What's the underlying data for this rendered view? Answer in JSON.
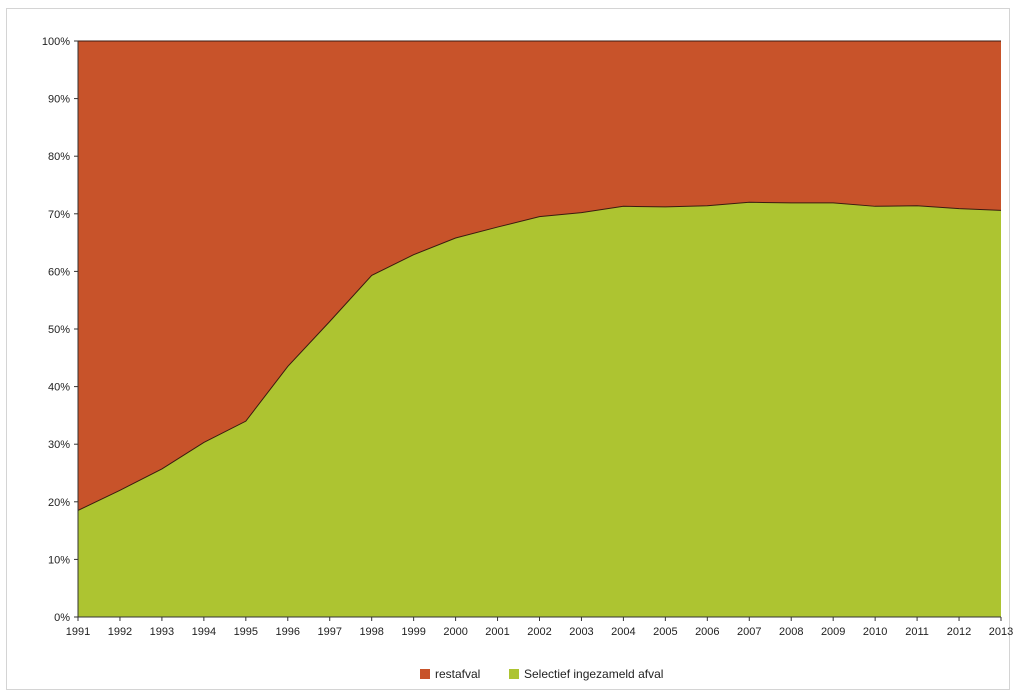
{
  "colors": {
    "restafval": "#c8532a",
    "selectief": "#adc431",
    "outline": "#3a1a10",
    "axis": "#333333"
  },
  "chart_data": {
    "type": "area",
    "stacked": true,
    "percent": true,
    "title": "",
    "xlabel": "",
    "ylabel": "",
    "ylim": [
      0,
      100
    ],
    "yticks": [
      "0%",
      "10%",
      "20%",
      "30%",
      "40%",
      "50%",
      "60%",
      "70%",
      "80%",
      "90%",
      "100%"
    ],
    "categories": [
      "1991",
      "1992",
      "1993",
      "1994",
      "1995",
      "1996",
      "1997",
      "1998",
      "1999",
      "2000",
      "2001",
      "2002",
      "2003",
      "2004",
      "2005",
      "2006",
      "2007",
      "2008",
      "2009",
      "2010",
      "2011",
      "2012",
      "2013"
    ],
    "series": [
      {
        "name": "restafval",
        "values": [
          81.5,
          78,
          74.3,
          69.7,
          66,
          56.5,
          48.7,
          40.7,
          37.1,
          34.2,
          32.3,
          30.5,
          29.8,
          28.7,
          28.8,
          28.6,
          28,
          28.1,
          28.1,
          28.7,
          28.6,
          29.1,
          29.4
        ]
      },
      {
        "name": "Selectief ingezameld afval",
        "values": [
          18.5,
          22,
          25.7,
          30.3,
          34,
          43.5,
          51.3,
          59.3,
          62.9,
          65.8,
          67.7,
          69.5,
          70.2,
          71.3,
          71.2,
          71.4,
          72,
          71.9,
          71.9,
          71.3,
          71.4,
          70.9,
          70.6
        ]
      }
    ],
    "legend": {
      "position": "bottom"
    },
    "grid": false
  }
}
